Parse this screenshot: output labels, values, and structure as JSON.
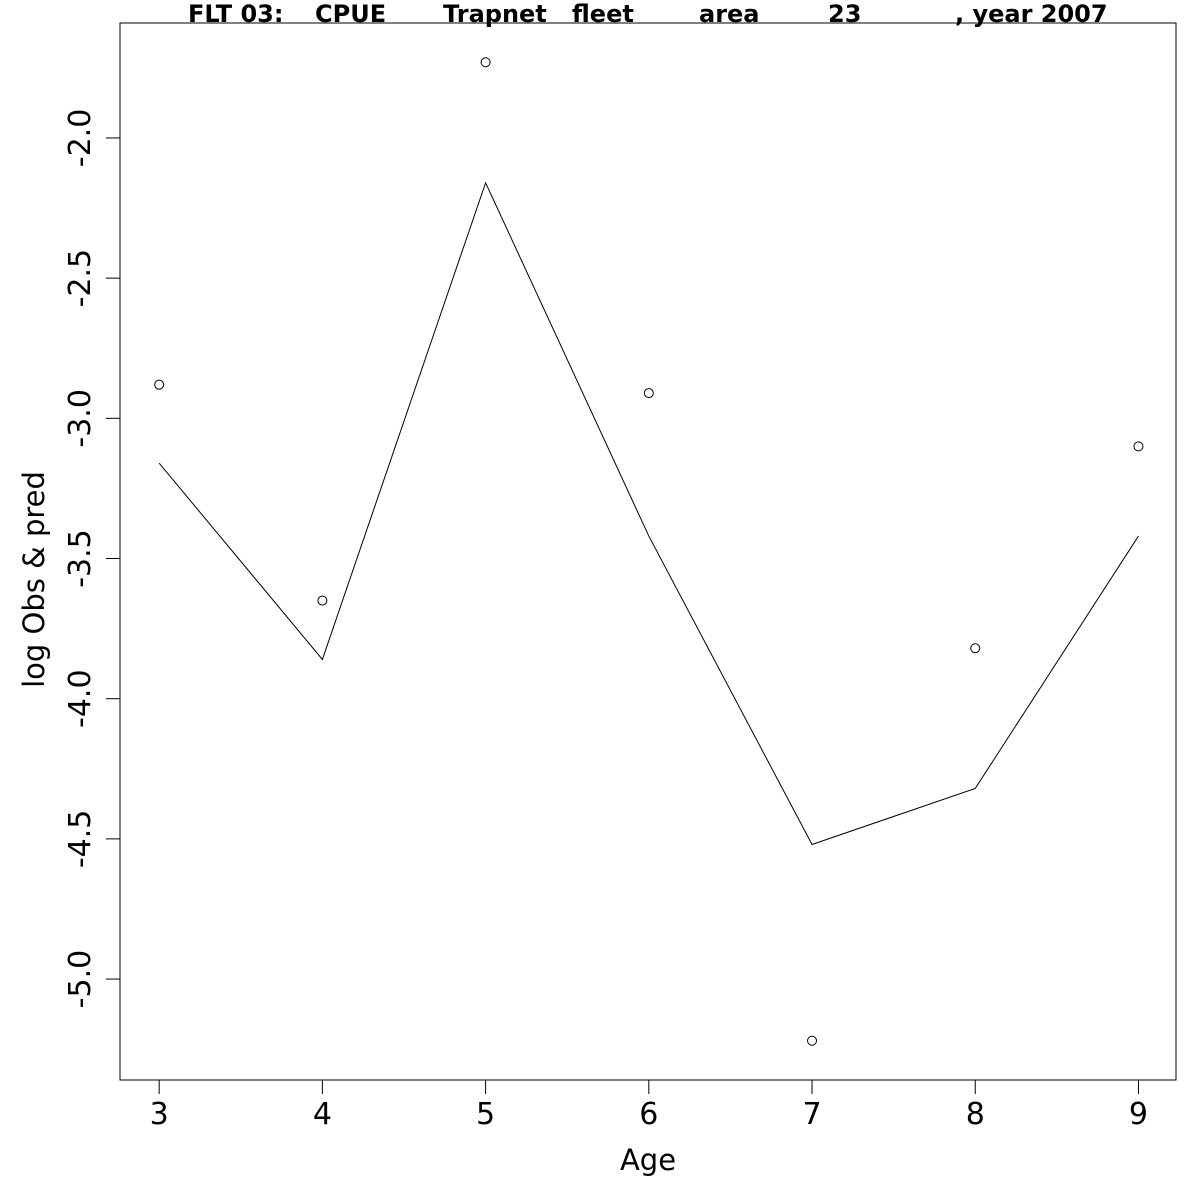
{
  "chart_data": {
    "type": "line",
    "title": "FLT 03:     CPUE        Trapnet    fleet         area         23               , year 2007",
    "title_segments": [
      "FLT 03:",
      "CPUE",
      "Trapnet",
      "fleet",
      "area",
      "23",
      ", year 2007"
    ],
    "xlabel": "Age",
    "ylabel": "log Obs & pred",
    "x": [
      3,
      4,
      5,
      6,
      7,
      8,
      9
    ],
    "x_ticks": [
      "3",
      "4",
      "5",
      "6",
      "7",
      "8",
      "9"
    ],
    "y_ticks": [
      "-2.0",
      "-2.5",
      "-3.0",
      "-3.5",
      "-4.0",
      "-4.5",
      "-5.0"
    ],
    "y_tick_values": [
      -2.0,
      -2.5,
      -3.0,
      -3.5,
      -4.0,
      -4.5,
      -5.0
    ],
    "xlim": [
      2.76,
      9.23
    ],
    "ylim": [
      -5.36,
      -1.59
    ],
    "grid": false,
    "series": [
      {
        "mark": "circle",
        "values": [
          -2.88,
          -3.65,
          -1.73,
          -2.91,
          -5.22,
          -3.82,
          -3.1
        ]
      },
      {
        "mark": "line",
        "values": [
          -3.16,
          -3.86,
          -2.16,
          -3.42,
          -4.52,
          -4.32,
          -3.42
        ]
      }
    ],
    "colors": {
      "line": "#000000",
      "points": "#000000",
      "frame": "#000000",
      "background": "#ffffff"
    }
  }
}
